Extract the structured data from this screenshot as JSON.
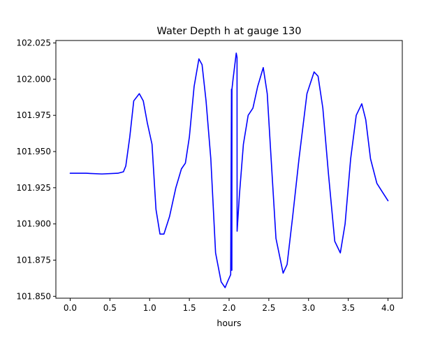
{
  "chart_data": {
    "type": "line",
    "title": "Water Depth h at gauge 130",
    "xlabel": "hours",
    "ylabel": "",
    "xlim": [
      -0.18,
      4.18
    ],
    "ylim": [
      101.8487,
      102.0267
    ],
    "x_ticks": [
      0.0,
      0.5,
      1.0,
      1.5,
      2.0,
      2.5,
      3.0,
      3.5,
      4.0
    ],
    "x_tick_labels": [
      "0.0",
      "0.5",
      "1.0",
      "1.5",
      "2.0",
      "2.5",
      "3.0",
      "3.5",
      "4.0"
    ],
    "y_ticks": [
      101.85,
      101.875,
      101.9,
      101.925,
      101.95,
      101.975,
      102.0,
      102.025
    ],
    "y_tick_labels": [
      "101.850",
      "101.875",
      "101.900",
      "101.925",
      "101.950",
      "101.975",
      "102.000",
      "102.025"
    ],
    "grid": false,
    "series": [
      {
        "color": "#0000ff",
        "x": [
          0.0,
          0.2,
          0.4,
          0.6,
          0.67,
          0.7,
          0.75,
          0.8,
          0.87,
          0.92,
          0.97,
          1.03,
          1.08,
          1.13,
          1.18,
          1.25,
          1.33,
          1.4,
          1.45,
          1.5,
          1.56,
          1.62,
          1.66,
          1.71,
          1.77,
          1.83,
          1.9,
          1.95,
          1.98,
          2.02,
          2.03,
          2.031,
          2.035,
          2.036,
          2.05,
          2.09,
          2.1,
          2.101,
          2.13,
          2.18,
          2.24,
          2.3,
          2.36,
          2.43,
          2.48,
          2.54,
          2.59,
          2.68,
          2.73,
          2.8,
          2.88,
          2.98,
          3.07,
          3.12,
          3.18,
          3.25,
          3.33,
          3.4,
          3.46,
          3.53,
          3.6,
          3.67,
          3.72,
          3.78,
          3.86,
          3.93,
          4.0
        ],
        "y": [
          101.935,
          101.935,
          101.9345,
          101.935,
          101.936,
          101.94,
          101.96,
          101.985,
          101.99,
          101.985,
          101.97,
          101.955,
          101.91,
          101.893,
          101.893,
          101.905,
          101.925,
          101.938,
          101.942,
          101.96,
          101.995,
          102.014,
          102.01,
          101.985,
          101.945,
          101.88,
          101.86,
          101.856,
          101.86,
          101.865,
          101.993,
          101.868,
          101.868,
          101.993,
          102.0,
          102.018,
          102.015,
          101.895,
          101.92,
          101.955,
          101.975,
          101.98,
          101.995,
          102.008,
          101.99,
          101.935,
          101.89,
          101.866,
          101.872,
          101.905,
          101.945,
          101.99,
          102.005,
          102.002,
          101.98,
          101.935,
          101.888,
          101.88,
          101.9,
          101.945,
          101.975,
          101.983,
          101.972,
          101.945,
          101.928,
          101.922,
          101.916
        ]
      }
    ]
  }
}
